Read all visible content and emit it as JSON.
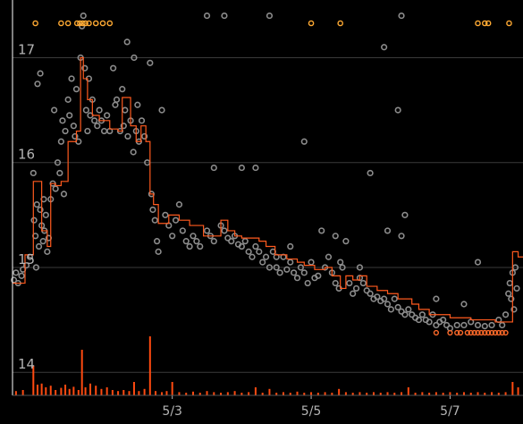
{
  "chart_data": {
    "type": "scatter",
    "title": "",
    "xlabel": "",
    "ylabel": "",
    "x_ticks": [
      "5/3",
      "5/5",
      "5/7"
    ],
    "y_ticks": [
      "14",
      "15",
      "16",
      "17"
    ],
    "xlim": [
      0.0,
      7.35
    ],
    "ylim": [
      13.78,
      17.55
    ],
    "grid": "horizontal",
    "legend": "none",
    "colors": {
      "background": "#000000",
      "grid": "#3a3a3a",
      "axis": "#ffffff",
      "tick_label": "#b4b4b4",
      "points": "#8c8c8c",
      "step_line": "#ff5a1e",
      "volume_bars": "#ff4a10",
      "top_markers": "#ffaa33",
      "low_markers": "#ff6a2a"
    },
    "step_line": [
      [
        0.0,
        14.85
      ],
      [
        0.18,
        15.12
      ],
      [
        0.3,
        15.82
      ],
      [
        0.42,
        15.35
      ],
      [
        0.5,
        15.2
      ],
      [
        0.55,
        15.8
      ],
      [
        0.62,
        15.78
      ],
      [
        0.7,
        15.82
      ],
      [
        0.8,
        16.2
      ],
      [
        0.92,
        16.3
      ],
      [
        0.98,
        17.0
      ],
      [
        1.02,
        16.8
      ],
      [
        1.08,
        16.6
      ],
      [
        1.15,
        16.45
      ],
      [
        1.25,
        16.4
      ],
      [
        1.4,
        16.32
      ],
      [
        1.52,
        16.3
      ],
      [
        1.58,
        16.62
      ],
      [
        1.7,
        16.35
      ],
      [
        1.78,
        16.2
      ],
      [
        1.85,
        16.35
      ],
      [
        1.92,
        16.2
      ],
      [
        1.98,
        15.7
      ],
      [
        2.03,
        15.6
      ],
      [
        2.1,
        15.42
      ],
      [
        2.25,
        15.5
      ],
      [
        2.4,
        15.45
      ],
      [
        2.55,
        15.4
      ],
      [
        2.75,
        15.3
      ],
      [
        2.9,
        15.3
      ],
      [
        3.0,
        15.45
      ],
      [
        3.1,
        15.35
      ],
      [
        3.2,
        15.3
      ],
      [
        3.3,
        15.28
      ],
      [
        3.45,
        15.28
      ],
      [
        3.55,
        15.25
      ],
      [
        3.65,
        15.2
      ],
      [
        3.78,
        15.12
      ],
      [
        3.95,
        15.08
      ],
      [
        4.1,
        15.05
      ],
      [
        4.2,
        15.02
      ],
      [
        4.35,
        14.98
      ],
      [
        4.5,
        15.0
      ],
      [
        4.6,
        14.92
      ],
      [
        4.72,
        14.8
      ],
      [
        4.8,
        14.92
      ],
      [
        4.9,
        14.88
      ],
      [
        5.0,
        14.92
      ],
      [
        5.1,
        14.82
      ],
      [
        5.25,
        14.78
      ],
      [
        5.4,
        14.75
      ],
      [
        5.55,
        14.7
      ],
      [
        5.65,
        14.7
      ],
      [
        5.75,
        14.65
      ],
      [
        5.85,
        14.6
      ],
      [
        6.0,
        14.55
      ],
      [
        6.1,
        14.55
      ],
      [
        6.3,
        14.52
      ],
      [
        6.45,
        14.52
      ],
      [
        6.6,
        14.5
      ],
      [
        6.72,
        14.5
      ],
      [
        6.95,
        14.48
      ],
      [
        7.12,
        14.48
      ],
      [
        7.2,
        15.15
      ],
      [
        7.28,
        15.1
      ]
    ],
    "points": [
      [
        0.02,
        14.88
      ],
      [
        0.05,
        14.95
      ],
      [
        0.08,
        14.85
      ],
      [
        0.13,
        14.92
      ],
      [
        0.15,
        14.98
      ],
      [
        0.2,
        15.02
      ],
      [
        0.25,
        15.1
      ],
      [
        0.31,
        15.45
      ],
      [
        0.33,
        15.3
      ],
      [
        0.35,
        15.6
      ],
      [
        0.38,
        15.2
      ],
      [
        0.4,
        15.55
      ],
      [
        0.42,
        15.4
      ],
      [
        0.44,
        15.25
      ],
      [
        0.46,
        15.35
      ],
      [
        0.48,
        15.5
      ],
      [
        0.5,
        15.15
      ],
      [
        0.52,
        15.28
      ],
      [
        0.55,
        15.65
      ],
      [
        0.58,
        15.8
      ],
      [
        0.6,
        16.5
      ],
      [
        0.62,
        15.75
      ],
      [
        0.65,
        16.0
      ],
      [
        0.68,
        15.9
      ],
      [
        0.7,
        16.2
      ],
      [
        0.72,
        16.4
      ],
      [
        0.74,
        15.7
      ],
      [
        0.76,
        16.3
      ],
      [
        0.8,
        16.6
      ],
      [
        0.85,
        16.8
      ],
      [
        0.88,
        16.35
      ],
      [
        0.9,
        16.25
      ],
      [
        0.92,
        16.7
      ],
      [
        0.95,
        16.2
      ],
      [
        0.98,
        17.0
      ],
      [
        1.0,
        17.3
      ],
      [
        1.02,
        17.4
      ],
      [
        1.04,
        16.9
      ],
      [
        1.06,
        16.5
      ],
      [
        1.08,
        16.3
      ],
      [
        1.1,
        16.8
      ],
      [
        1.12,
        16.45
      ],
      [
        1.15,
        16.6
      ],
      [
        1.18,
        16.4
      ],
      [
        1.22,
        16.35
      ],
      [
        1.25,
        16.5
      ],
      [
        1.28,
        16.4
      ],
      [
        1.32,
        16.3
      ],
      [
        1.36,
        16.45
      ],
      [
        1.4,
        16.3
      ],
      [
        1.45,
        16.9
      ],
      [
        1.5,
        16.6
      ],
      [
        1.55,
        16.3
      ],
      [
        1.58,
        16.7
      ],
      [
        1.62,
        16.5
      ],
      [
        1.66,
        16.25
      ],
      [
        1.7,
        16.4
      ],
      [
        1.74,
        16.1
      ],
      [
        1.78,
        16.3
      ],
      [
        1.82,
        16.2
      ],
      [
        1.86,
        16.4
      ],
      [
        1.9,
        16.25
      ],
      [
        1.94,
        16.0
      ],
      [
        1.98,
        16.95
      ],
      [
        2.0,
        15.7
      ],
      [
        2.02,
        15.55
      ],
      [
        2.05,
        15.45
      ],
      [
        2.08,
        15.25
      ],
      [
        2.1,
        15.15
      ],
      [
        2.15,
        16.5
      ],
      [
        2.2,
        15.5
      ],
      [
        2.25,
        15.4
      ],
      [
        2.3,
        15.3
      ],
      [
        2.35,
        15.45
      ],
      [
        2.4,
        15.6
      ],
      [
        2.45,
        15.35
      ],
      [
        2.5,
        15.25
      ],
      [
        2.55,
        15.2
      ],
      [
        2.6,
        15.3
      ],
      [
        2.65,
        15.25
      ],
      [
        2.7,
        15.2
      ],
      [
        2.8,
        15.35
      ],
      [
        2.85,
        15.3
      ],
      [
        2.9,
        15.25
      ],
      [
        3.0,
        15.4
      ],
      [
        3.05,
        15.35
      ],
      [
        3.1,
        15.28
      ],
      [
        3.15,
        15.25
      ],
      [
        3.2,
        15.3
      ],
      [
        3.25,
        15.22
      ],
      [
        3.3,
        15.2
      ],
      [
        3.35,
        15.25
      ],
      [
        3.4,
        15.15
      ],
      [
        3.45,
        15.1
      ],
      [
        3.5,
        15.2
      ],
      [
        3.55,
        15.15
      ],
      [
        3.6,
        15.05
      ],
      [
        3.65,
        15.1
      ],
      [
        3.7,
        15.0
      ],
      [
        3.75,
        15.15
      ],
      [
        3.8,
        15.0
      ],
      [
        3.85,
        14.95
      ],
      [
        3.9,
        15.1
      ],
      [
        3.95,
        14.98
      ],
      [
        4.0,
        15.05
      ],
      [
        4.05,
        14.95
      ],
      [
        4.1,
        14.9
      ],
      [
        4.15,
        15.0
      ],
      [
        4.2,
        14.95
      ],
      [
        4.25,
        14.85
      ],
      [
        4.3,
        15.05
      ],
      [
        4.35,
        14.9
      ],
      [
        4.4,
        14.92
      ],
      [
        4.45,
        15.35
      ],
      [
        4.5,
        15.0
      ],
      [
        4.55,
        15.1
      ],
      [
        4.6,
        14.95
      ],
      [
        4.65,
        14.85
      ],
      [
        4.7,
        14.8
      ],
      [
        4.75,
        15.0
      ],
      [
        4.8,
        15.25
      ],
      [
        4.85,
        14.85
      ],
      [
        4.9,
        14.75
      ],
      [
        4.95,
        14.8
      ],
      [
        5.0,
        14.9
      ],
      [
        5.05,
        14.85
      ],
      [
        5.1,
        14.78
      ],
      [
        5.15,
        14.75
      ],
      [
        5.2,
        14.7
      ],
      [
        5.25,
        14.72
      ],
      [
        5.3,
        14.68
      ],
      [
        5.35,
        14.7
      ],
      [
        5.4,
        14.65
      ],
      [
        5.45,
        14.6
      ],
      [
        5.5,
        14.7
      ],
      [
        5.55,
        14.62
      ],
      [
        5.6,
        14.58
      ],
      [
        5.65,
        14.55
      ],
      [
        5.7,
        14.6
      ],
      [
        5.75,
        14.55
      ],
      [
        5.8,
        14.52
      ],
      [
        5.85,
        14.5
      ],
      [
        5.9,
        14.55
      ],
      [
        5.95,
        14.5
      ],
      [
        6.0,
        14.48
      ],
      [
        6.05,
        14.55
      ],
      [
        6.1,
        14.45
      ],
      [
        6.15,
        14.48
      ],
      [
        6.2,
        14.5
      ],
      [
        6.25,
        14.45
      ],
      [
        6.3,
        14.42
      ],
      [
        6.4,
        14.45
      ],
      [
        6.5,
        14.45
      ],
      [
        6.6,
        14.48
      ],
      [
        6.7,
        14.45
      ],
      [
        6.8,
        14.44
      ],
      [
        6.9,
        14.45
      ],
      [
        7.0,
        14.5
      ],
      [
        7.05,
        14.45
      ],
      [
        7.1,
        14.55
      ],
      [
        7.14,
        14.75
      ],
      [
        7.16,
        14.85
      ],
      [
        7.18,
        14.7
      ],
      [
        7.2,
        14.95
      ],
      [
        7.22,
        14.6
      ],
      [
        7.24,
        15.0
      ],
      [
        7.26,
        14.8
      ],
      [
        2.8,
        17.4
      ],
      [
        3.05,
        17.4
      ],
      [
        3.7,
        17.4
      ],
      [
        4.2,
        16.2
      ],
      [
        3.3,
        15.95
      ],
      [
        3.5,
        15.95
      ],
      [
        2.9,
        15.95
      ],
      [
        5.15,
        15.9
      ],
      [
        5.0,
        15.0
      ],
      [
        5.4,
        15.35
      ],
      [
        5.55,
        16.5
      ],
      [
        5.65,
        15.5
      ],
      [
        5.6,
        15.3
      ],
      [
        5.35,
        17.1
      ],
      [
        5.6,
        17.4
      ],
      [
        6.7,
        15.05
      ],
      [
        6.5,
        14.65
      ],
      [
        6.1,
        14.7
      ],
      [
        4.0,
        15.2
      ],
      [
        3.8,
        15.1
      ],
      [
        4.65,
        15.3
      ],
      [
        4.72,
        15.05
      ],
      [
        1.6,
        16.35
      ],
      [
        1.75,
        17.0
      ],
      [
        1.8,
        16.55
      ],
      [
        1.65,
        17.15
      ],
      [
        1.48,
        16.55
      ],
      [
        0.36,
        16.75
      ],
      [
        0.4,
        16.85
      ],
      [
        0.82,
        16.45
      ],
      [
        0.3,
        15.9
      ],
      [
        0.34,
        15.0
      ],
      [
        0.45,
        15.65
      ]
    ],
    "volume": [
      [
        0.05,
        0.08
      ],
      [
        0.15,
        0.1
      ],
      [
        0.3,
        0.55
      ],
      [
        0.36,
        0.2
      ],
      [
        0.42,
        0.22
      ],
      [
        0.48,
        0.15
      ],
      [
        0.55,
        0.18
      ],
      [
        0.62,
        0.1
      ],
      [
        0.7,
        0.14
      ],
      [
        0.76,
        0.2
      ],
      [
        0.82,
        0.12
      ],
      [
        0.88,
        0.16
      ],
      [
        0.95,
        0.1
      ],
      [
        1.0,
        0.85
      ],
      [
        1.05,
        0.15
      ],
      [
        1.12,
        0.22
      ],
      [
        1.2,
        0.18
      ],
      [
        1.28,
        0.12
      ],
      [
        1.36,
        0.15
      ],
      [
        1.44,
        0.1
      ],
      [
        1.52,
        0.08
      ],
      [
        1.6,
        0.1
      ],
      [
        1.68,
        0.08
      ],
      [
        1.75,
        0.25
      ],
      [
        1.82,
        0.08
      ],
      [
        1.9,
        0.12
      ],
      [
        1.98,
        1.1
      ],
      [
        2.06,
        0.08
      ],
      [
        2.15,
        0.06
      ],
      [
        2.22,
        0.08
      ],
      [
        2.3,
        0.25
      ],
      [
        2.4,
        0.06
      ],
      [
        2.5,
        0.05
      ],
      [
        2.6,
        0.07
      ],
      [
        2.7,
        0.05
      ],
      [
        2.8,
        0.08
      ],
      [
        2.9,
        0.06
      ],
      [
        3.0,
        0.05
      ],
      [
        3.1,
        0.06
      ],
      [
        3.2,
        0.08
      ],
      [
        3.3,
        0.05
      ],
      [
        3.4,
        0.06
      ],
      [
        3.5,
        0.15
      ],
      [
        3.6,
        0.05
      ],
      [
        3.7,
        0.12
      ],
      [
        3.8,
        0.05
      ],
      [
        3.9,
        0.06
      ],
      [
        4.0,
        0.05
      ],
      [
        4.1,
        0.07
      ],
      [
        4.2,
        0.05
      ],
      [
        4.3,
        0.06
      ],
      [
        4.4,
        0.05
      ],
      [
        4.5,
        0.06
      ],
      [
        4.6,
        0.05
      ],
      [
        4.7,
        0.12
      ],
      [
        4.8,
        0.06
      ],
      [
        4.9,
        0.05
      ],
      [
        5.0,
        0.06
      ],
      [
        5.1,
        0.05
      ],
      [
        5.2,
        0.06
      ],
      [
        5.3,
        0.05
      ],
      [
        5.4,
        0.06
      ],
      [
        5.5,
        0.05
      ],
      [
        5.6,
        0.06
      ],
      [
        5.7,
        0.15
      ],
      [
        5.8,
        0.05
      ],
      [
        5.9,
        0.06
      ],
      [
        6.0,
        0.05
      ],
      [
        6.1,
        0.06
      ],
      [
        6.2,
        0.05
      ],
      [
        6.3,
        0.06
      ],
      [
        6.4,
        0.05
      ],
      [
        6.5,
        0.06
      ],
      [
        6.6,
        0.05
      ],
      [
        6.7,
        0.06
      ],
      [
        6.8,
        0.05
      ],
      [
        6.9,
        0.06
      ],
      [
        7.0,
        0.05
      ],
      [
        7.1,
        0.06
      ],
      [
        7.2,
        0.25
      ],
      [
        7.28,
        0.15
      ]
    ],
    "top_markers": [
      0.33,
      0.7,
      0.8,
      0.93,
      0.97,
      1.01,
      1.05,
      1.1,
      1.2,
      1.3,
      1.4,
      4.3,
      4.72,
      6.7,
      6.8,
      6.85,
      7.15
    ],
    "low_markers": [
      6.1,
      6.3,
      6.4,
      6.45,
      6.55,
      6.6,
      6.65,
      6.7,
      6.75,
      6.8,
      6.85,
      6.9,
      6.95,
      7.0,
      7.05,
      7.1
    ]
  }
}
